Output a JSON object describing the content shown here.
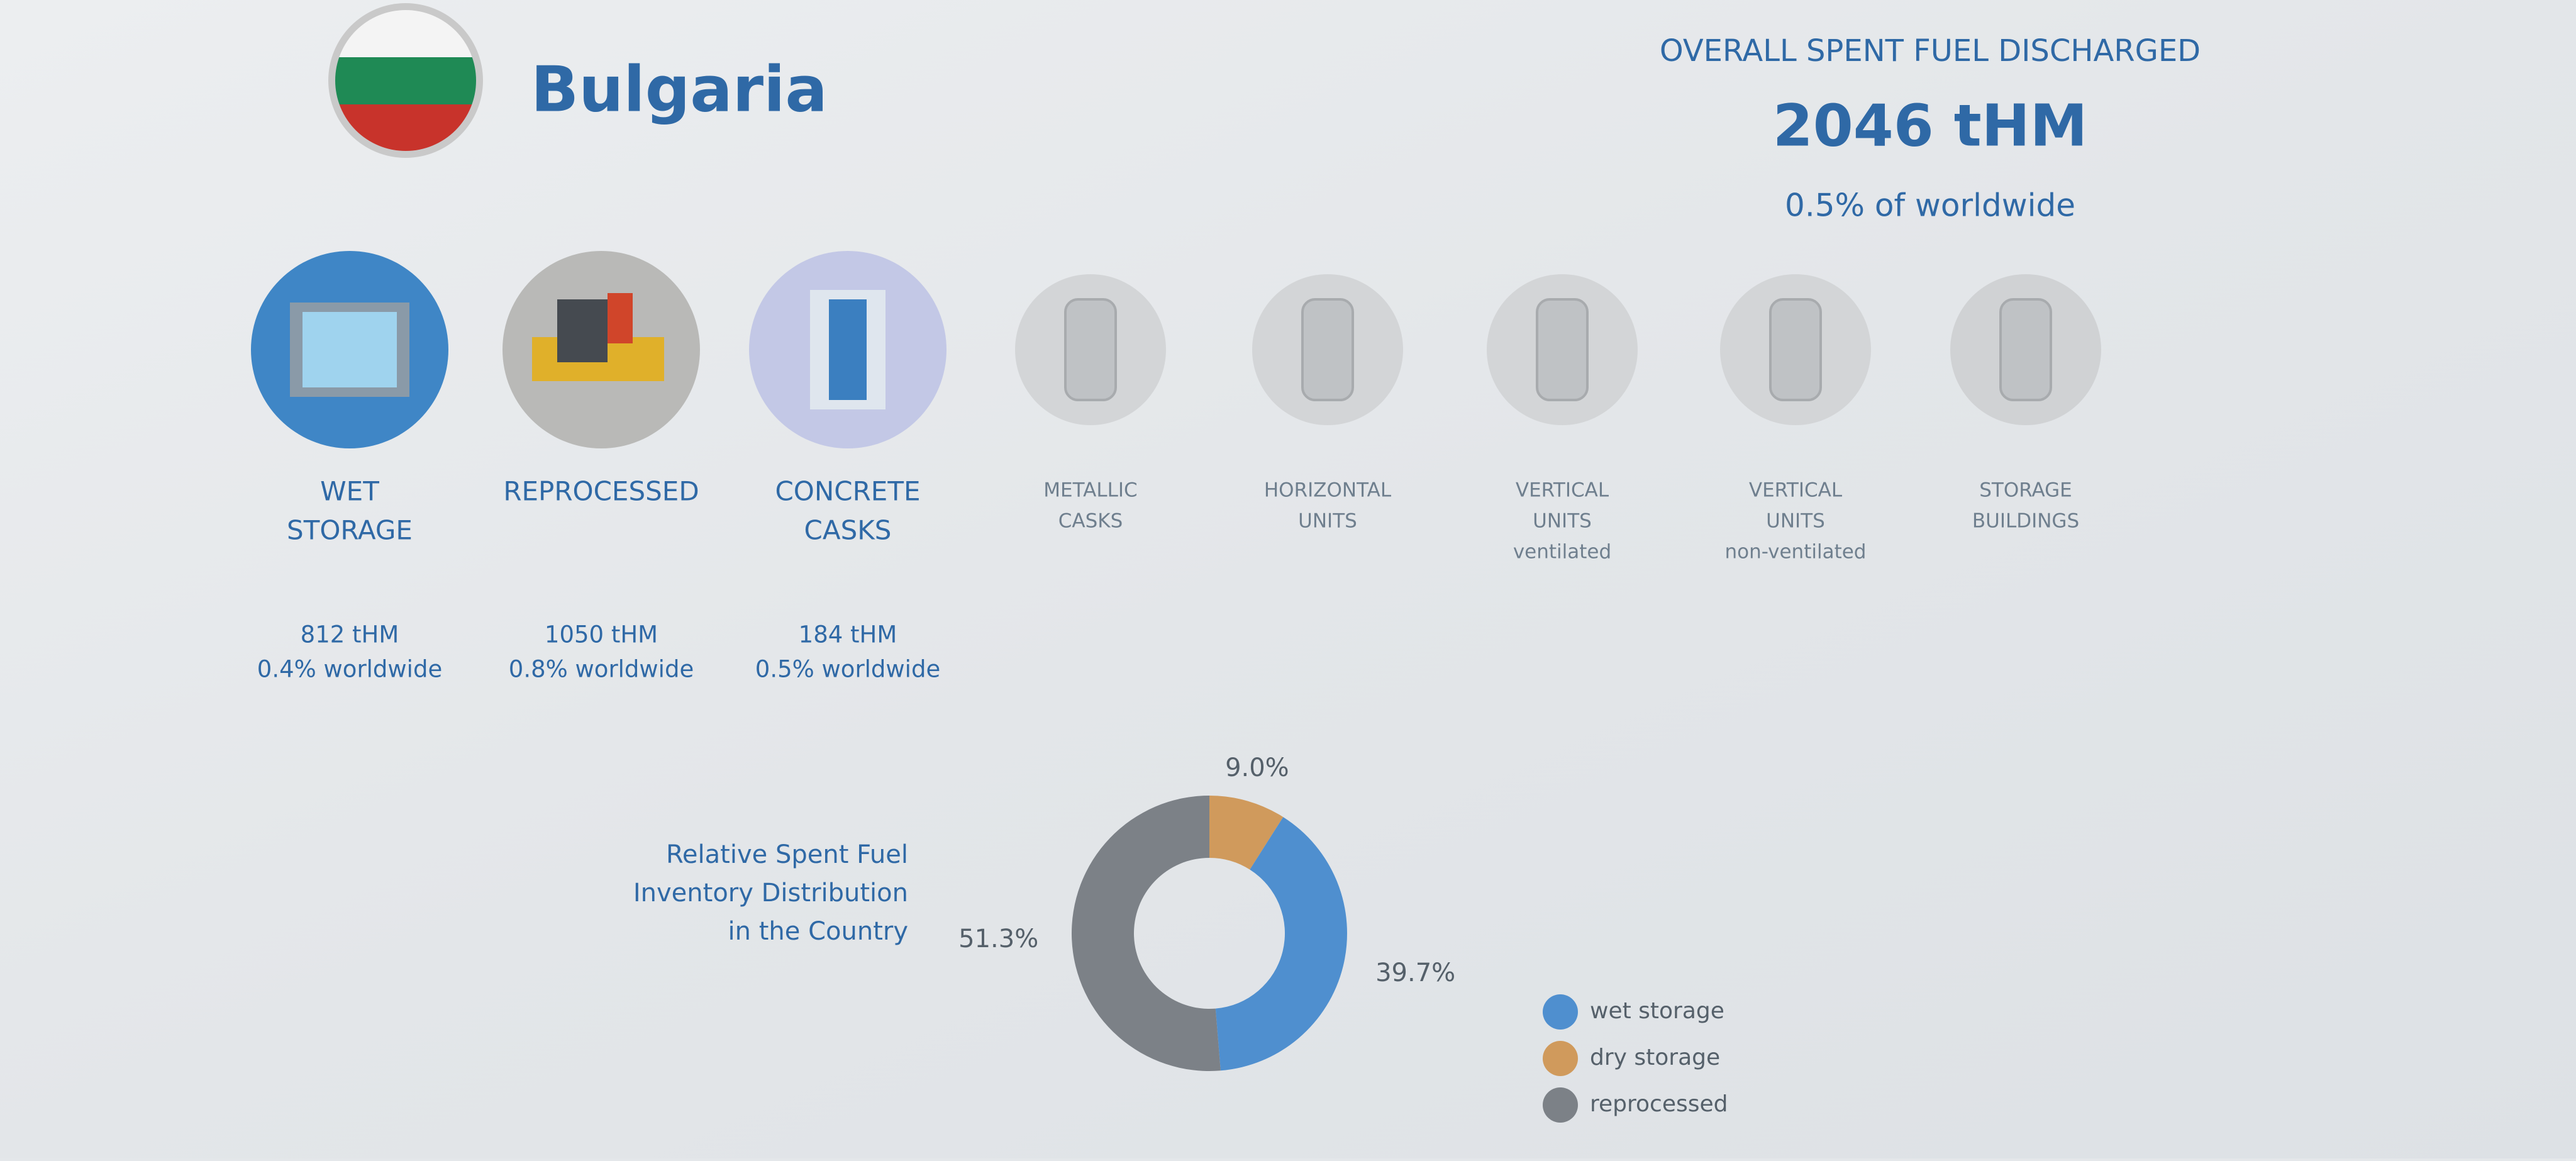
{
  "header": {
    "country": "Bulgaria"
  },
  "summary": {
    "title": "OVERALL SPENT FUEL DISCHARGED",
    "value": "2046 tHM",
    "share": "0.5% of worldwide"
  },
  "items": [
    {
      "label": [
        "WET",
        "STORAGE"
      ],
      "amount": "812 tHM",
      "share": "0.4% worldwide"
    },
    {
      "label": [
        "REPROCESSED"
      ],
      "amount": "1050 tHM",
      "share": "0.8% worldwide"
    },
    {
      "label": [
        "CONCRETE",
        "CASKS"
      ],
      "amount": "184 tHM",
      "share": "0.5% worldwide"
    },
    {
      "label": [
        "METALLIC",
        "CASKS"
      ]
    },
    {
      "label": [
        "HORIZONTAL",
        "UNITS"
      ]
    },
    {
      "label": [
        "VERTICAL",
        "UNITS"
      ],
      "note": "ventilated"
    },
    {
      "label": [
        "VERTICAL",
        "UNITS"
      ],
      "note": "non-ventilated"
    },
    {
      "label": [
        "STORAGE",
        "BUILDINGS"
      ]
    }
  ],
  "chart_data": {
    "type": "donut",
    "title": [
      "Relative Spent Fuel",
      "Inventory Distribution",
      "in the Country"
    ],
    "categories": [
      "wet storage",
      "dry storage",
      "reprocessed"
    ],
    "values": [
      39.7,
      9.0,
      51.3
    ],
    "value_labels": [
      "39.7%",
      "9.0%",
      "51.3%"
    ],
    "colors": [
      "#4f8fcf",
      "#d09a5c",
      "#7c8187"
    ],
    "legend": "right"
  }
}
